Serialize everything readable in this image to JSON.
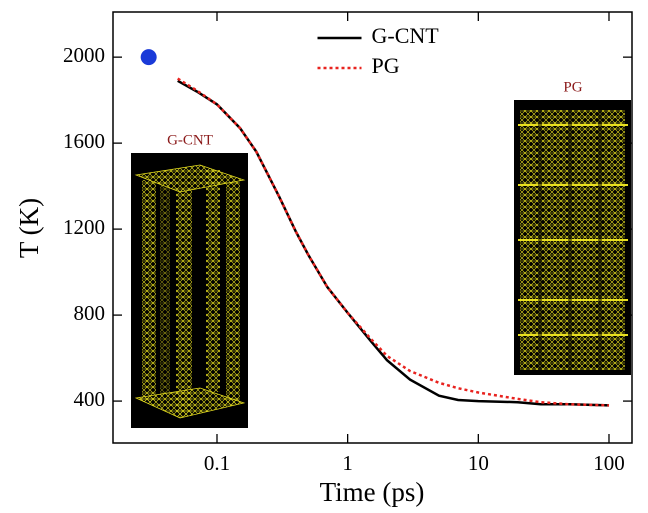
{
  "chart_data": {
    "type": "line",
    "xlabel": "Time (ps)",
    "ylabel": "T (K)",
    "x": [
      0.05,
      0.07,
      0.1,
      0.15,
      0.2,
      0.3,
      0.4,
      0.5,
      0.7,
      1,
      1.5,
      2,
      3,
      5,
      7,
      10,
      20,
      30,
      50,
      100
    ],
    "series": [
      {
        "name": "G-CNT",
        "color": "#000000",
        "dash": "solid",
        "values": [
          1890,
          1840,
          1780,
          1670,
          1560,
          1350,
          1190,
          1080,
          930,
          810,
          680,
          590,
          500,
          425,
          405,
          400,
          395,
          385,
          385,
          380
        ]
      },
      {
        "name": "PG",
        "color": "#e8231f",
        "dash": "dotted",
        "values": [
          1900,
          1845,
          1780,
          1670,
          1560,
          1350,
          1190,
          1080,
          930,
          810,
          690,
          610,
          540,
          485,
          460,
          440,
          410,
          395,
          385,
          380
        ]
      }
    ],
    "point": {
      "x": 0.03,
      "y": 2000,
      "color": "#1a3ad8"
    },
    "xscale": "log",
    "xlim": [
      0.016,
      150
    ],
    "xticks": [
      0.1,
      1,
      10,
      100
    ],
    "ylim": [
      205,
      2210
    ],
    "yticks": [
      400,
      800,
      1200,
      1600,
      2000
    ],
    "legend": "top-center",
    "insets": [
      {
        "label": "G-CNT"
      },
      {
        "label": "PG"
      }
    ]
  }
}
